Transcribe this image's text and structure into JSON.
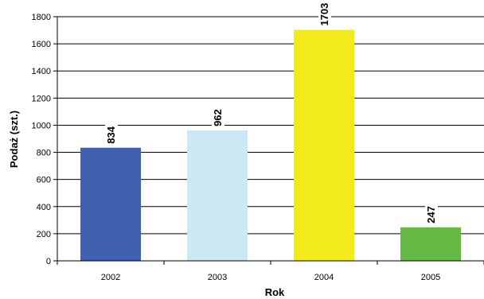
{
  "chart_data": {
    "type": "bar",
    "categories": [
      "2002",
      "2003",
      "2004",
      "2005"
    ],
    "values": [
      834,
      962,
      1703,
      247
    ],
    "data_labels": [
      "834",
      "962",
      "1703",
      "247"
    ],
    "colors": [
      "#4060B0",
      "#CCE8F4",
      "#F2EA1A",
      "#64B843"
    ],
    "xlabel": "Rok",
    "ylabel": "Podaż (szt.)",
    "ylim": [
      0,
      1800
    ],
    "yticks": [
      0,
      200,
      400,
      600,
      800,
      1000,
      1200,
      1400,
      1600,
      1800
    ],
    "grid": true,
    "legend": "none"
  }
}
